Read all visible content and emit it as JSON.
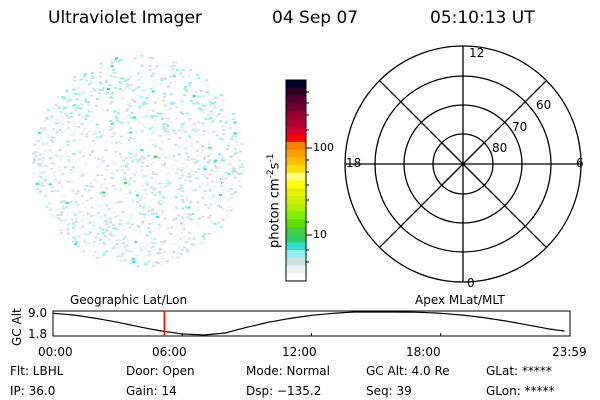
{
  "header": {
    "instrument": "Ultraviolet Imager",
    "date": "04 Sep 07",
    "time": "05:10:13 UT"
  },
  "colorbar": {
    "label": "photon cm",
    "exp1": "-2",
    "unit2": "s",
    "exp2": "-1",
    "ticks": [
      "100",
      "10"
    ],
    "colors": [
      "#000030",
      "#300020",
      "#500030",
      "#700030",
      "#900030",
      "#b00030",
      "#d00030",
      "#ff0000",
      "#ff8000",
      "#ffa000",
      "#ffc000",
      "#ffe000",
      "#ffff80",
      "#ffff00",
      "#e8f000",
      "#d0f000",
      "#b0f000",
      "#80f000",
      "#60e000",
      "#40d040",
      "#30d060",
      "#30e0d0",
      "#90f0f0",
      "#d0e0e0",
      "#e8f4f0",
      "#ffffff"
    ]
  },
  "polar": {
    "mlt_labels": {
      "top": "12",
      "bottom": "0",
      "left": "18",
      "right": "6"
    },
    "lat_labels": [
      "80",
      "70",
      "60"
    ]
  },
  "altplot": {
    "left_title": "Geographic Lat/Lon",
    "right_title": "Apex MLat/MLT",
    "ylabel": "GC Alt",
    "yticks": [
      "9.0",
      "1.8"
    ],
    "xticks": [
      "00:00",
      "06:00",
      "12:00",
      "18:00",
      "23:59"
    ],
    "cursor_color": "#ff0000",
    "cursor_time_hours": 5.17
  },
  "status": {
    "flt": "Flt: LBHL",
    "ip": "IP: 36.0",
    "door": "Door: Open",
    "gain": "Gain: 14",
    "mode": "Mode: Normal",
    "dsp": "Dsp: −135.2",
    "gcalt": "GC Alt: 4.0 Re",
    "seq": "Seq: 39",
    "glat": "GLat: *****",
    "glon": "GLon: *****"
  }
}
